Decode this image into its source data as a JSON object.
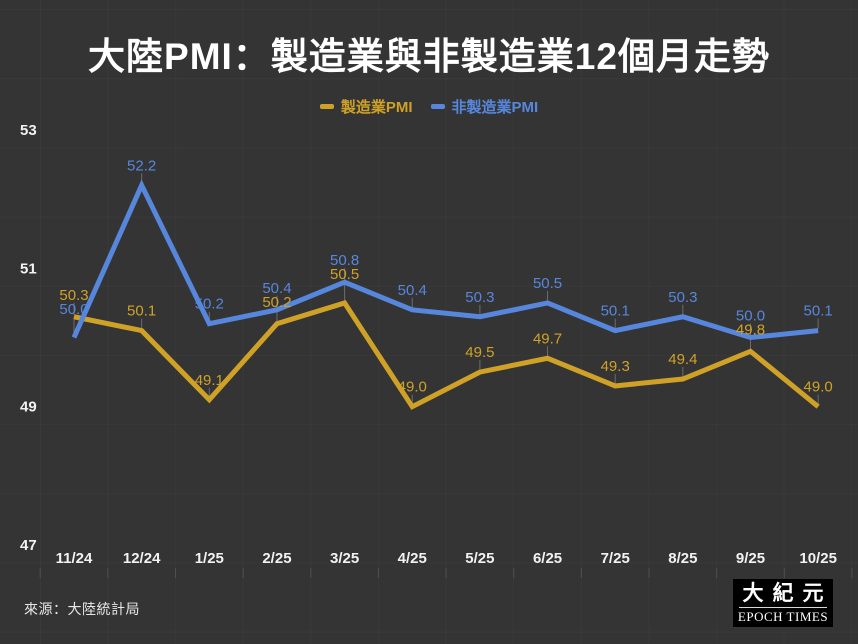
{
  "header": {
    "title": "大陸PMI：製造業與非製造業12個月走勢"
  },
  "legend": {
    "items": [
      {
        "label": "製造業PMI",
        "color": "#cfa227"
      },
      {
        "label": "非製造業PMI",
        "color": "#5787dc"
      }
    ]
  },
  "chart_data": {
    "type": "line",
    "title": "大陸PMI：製造業與非製造業12個月走勢",
    "categories": [
      "11/24",
      "12/24",
      "1/25",
      "2/25",
      "3/25",
      "4/25",
      "5/25",
      "6/25",
      "7/25",
      "8/25",
      "9/25",
      "10/25"
    ],
    "series": [
      {
        "name": "製造業PMI",
        "color": "#cfa227",
        "values": [
          50.3,
          50.1,
          49.1,
          50.2,
          50.5,
          49.0,
          49.5,
          49.7,
          49.3,
          49.4,
          49.8,
          49.0
        ]
      },
      {
        "name": "非製造業PMI",
        "color": "#5787dc",
        "values": [
          50.0,
          52.2,
          50.2,
          50.4,
          50.8,
          50.4,
          50.3,
          50.5,
          50.1,
          50.3,
          50.0,
          50.1
        ]
      }
    ],
    "y_ticks": [
      53,
      51,
      49,
      47
    ],
    "ylim": [
      47,
      53
    ],
    "xlabel": "",
    "ylabel": "",
    "grid": false,
    "legend_position": "top"
  },
  "footer": {
    "source": "來源：大陸統計局"
  },
  "logo": {
    "cn": "大紀元",
    "en": "EPOCH TIMES"
  },
  "colors": {
    "background": "#343434",
    "axis_text": "#f2f2f2",
    "title_text": "#ffffff",
    "leader_line": "#9a9a9a",
    "logo_background": "#000000"
  }
}
